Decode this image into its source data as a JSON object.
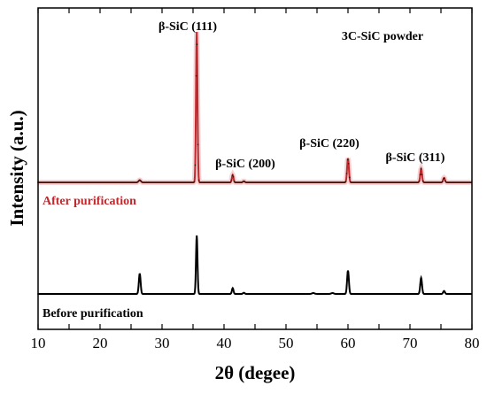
{
  "chart_data": {
    "type": "line",
    "title": "3C-SiC powder",
    "xlabel": "2θ (degee)",
    "ylabel": "Intensity (a.u.)",
    "xlim": [
      10,
      80
    ],
    "x_ticks": [
      10,
      15,
      20,
      25,
      30,
      35,
      40,
      45,
      50,
      55,
      60,
      65,
      70,
      75,
      80
    ],
    "grid": false,
    "y_tick_labels": false,
    "series": [
      {
        "name": "After purification",
        "color": "#c0282c",
        "marker_color": "#3a1a10",
        "baseline": 0.29,
        "peaks": [
          {
            "x": 26.4,
            "height": 0.015,
            "width": 0.25
          },
          {
            "x": 35.6,
            "height": 1.0,
            "width": 0.17
          },
          {
            "x": 41.4,
            "height": 0.05,
            "width": 0.18
          },
          {
            "x": 43.2,
            "height": 0.008,
            "width": 0.2
          },
          {
            "x": 60.0,
            "height": 0.16,
            "width": 0.2
          },
          {
            "x": 71.8,
            "height": 0.09,
            "width": 0.2
          },
          {
            "x": 75.5,
            "height": 0.03,
            "width": 0.2
          }
        ]
      },
      {
        "name": "Before purification",
        "color": "#000000",
        "marker_color": "#000000",
        "baseline": 0.0,
        "peaks": [
          {
            "x": 26.4,
            "height": 0.14,
            "width": 0.2
          },
          {
            "x": 35.6,
            "height": 0.4,
            "width": 0.17
          },
          {
            "x": 41.4,
            "height": 0.04,
            "width": 0.18
          },
          {
            "x": 43.2,
            "height": 0.008,
            "width": 0.2
          },
          {
            "x": 54.4,
            "height": 0.006,
            "width": 0.3
          },
          {
            "x": 57.5,
            "height": 0.006,
            "width": 0.3
          },
          {
            "x": 60.0,
            "height": 0.16,
            "width": 0.2
          },
          {
            "x": 71.8,
            "height": 0.11,
            "width": 0.2
          },
          {
            "x": 75.5,
            "height": 0.02,
            "width": 0.2
          }
        ]
      }
    ],
    "annotations": [
      {
        "text": "β-SiC (111)",
        "x": 35.6
      },
      {
        "text": "β-SiC (200)",
        "x": 41.4
      },
      {
        "text": "β-SiC (220)",
        "x": 60.0
      },
      {
        "text": "β-SiC (311)",
        "x": 71.8
      }
    ]
  }
}
